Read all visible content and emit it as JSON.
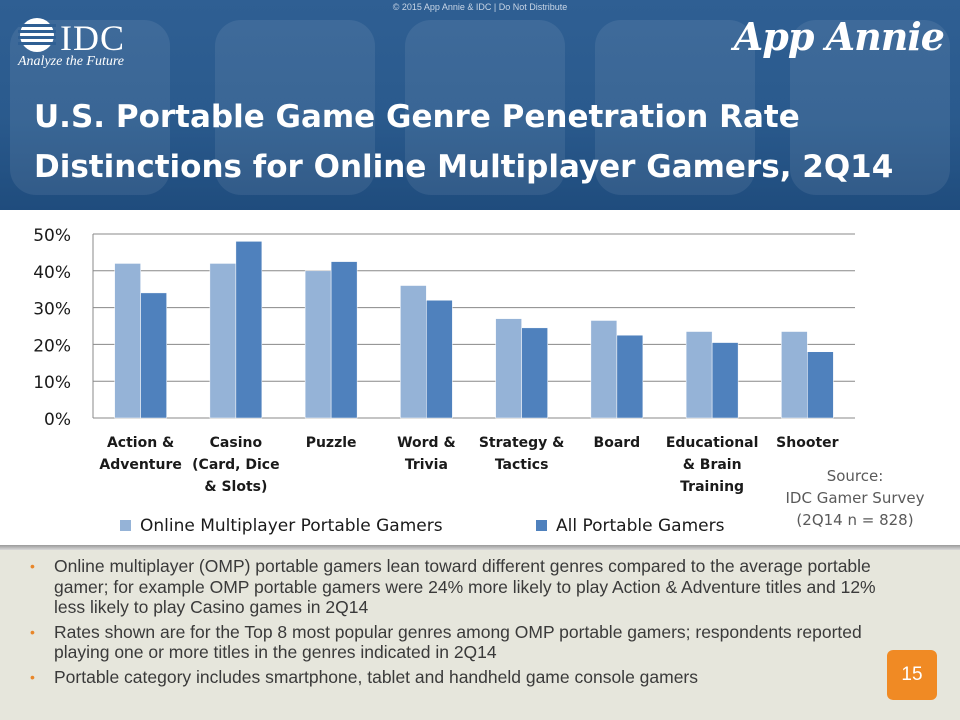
{
  "copyright": "© 2015 App Annie & IDC | Do Not Distribute",
  "logos": {
    "idc": "IDC",
    "idc_tagline": "Analyze the Future",
    "app_annie": "App Annie"
  },
  "title_line1": "U.S. Portable Game Genre Penetration Rate",
  "title_line2": "Distinctions for Online Multiplayer Gamers, 2Q14",
  "chart_data": {
    "type": "bar",
    "title": "U.S. Portable Game Genre Penetration Rate Distinctions for Online Multiplayer Gamers, 2Q14",
    "categories": [
      [
        "Action &",
        "Adventure"
      ],
      [
        "Casino",
        "(Card, Dice",
        "& Slots)"
      ],
      [
        "Puzzle"
      ],
      [
        "Word &",
        "Trivia"
      ],
      [
        "Strategy &",
        "Tactics"
      ],
      [
        "Board"
      ],
      [
        "Educational",
        "& Brain",
        "Training"
      ],
      [
        "Shooter"
      ]
    ],
    "series": [
      {
        "name": "Online Multiplayer Portable Gamers",
        "color": "#95b3d7",
        "values": [
          42,
          42,
          40,
          36,
          27,
          26.5,
          23.5,
          23.5
        ]
      },
      {
        "name": "All Portable Gamers",
        "color": "#4f81bd",
        "values": [
          34,
          48,
          42.5,
          32,
          24.5,
          22.5,
          20.5,
          18
        ]
      }
    ],
    "yticks": [
      "0%",
      "10%",
      "20%",
      "30%",
      "40%",
      "50%"
    ],
    "ylim": [
      0,
      50
    ],
    "grid": true,
    "legend": "bottom"
  },
  "source_lines": [
    "Source:",
    "IDC Gamer Survey",
    "(2Q14 n = 828)"
  ],
  "bullets": [
    "Online multiplayer (OMP) portable gamers lean toward different genres compared to the average portable gamer; for example OMP portable gamers were 24% more likely to play Action & Adventure titles and 12% less likely to play Casino games in 2Q14",
    "Rates shown are for the Top 8 most popular genres among OMP portable gamers; respondents reported playing one or more titles in the genres indicated in 2Q14",
    "Portable category includes smartphone, tablet and handheld game console gamers"
  ],
  "bullet_marker": "•",
  "page_number": "15"
}
